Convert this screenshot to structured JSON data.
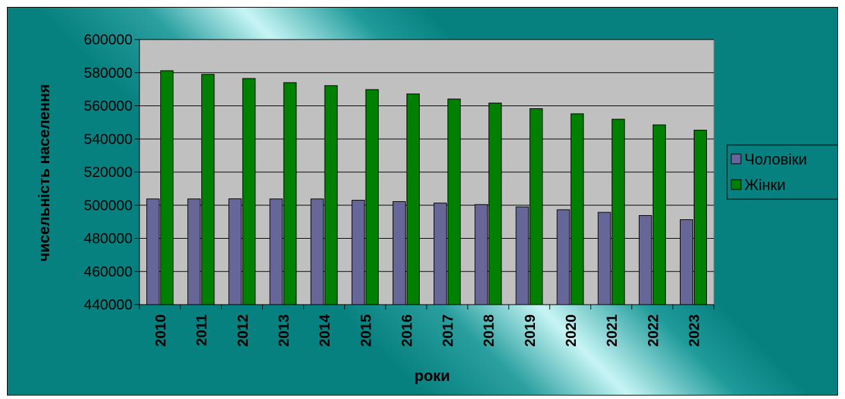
{
  "chart_data": {
    "type": "bar",
    "title": "",
    "xlabel": "роки",
    "ylabel": "чисельність населення",
    "categories": [
      "2010",
      "2011",
      "2012",
      "2013",
      "2014",
      "2015",
      "2016",
      "2017",
      "2018",
      "2019",
      "2020",
      "2021",
      "2022",
      "2023"
    ],
    "series": [
      {
        "name": "Чоловіки",
        "color": "#666699",
        "values": [
          503800,
          503800,
          503900,
          503800,
          503800,
          503000,
          502200,
          501300,
          500400,
          499000,
          497300,
          495700,
          493800,
          491300
        ]
      },
      {
        "name": "Жінки",
        "color": "#008000",
        "values": [
          581200,
          579000,
          576500,
          574000,
          572200,
          569800,
          567200,
          564100,
          561700,
          558300,
          555200,
          551900,
          548500,
          545300
        ]
      }
    ],
    "ylim": [
      440000,
      600000
    ],
    "yticks": [
      440000,
      460000,
      480000,
      500000,
      520000,
      540000,
      560000,
      580000,
      600000
    ],
    "grid": true,
    "legend_position": "right",
    "plot_background": "#c0c0c0"
  }
}
